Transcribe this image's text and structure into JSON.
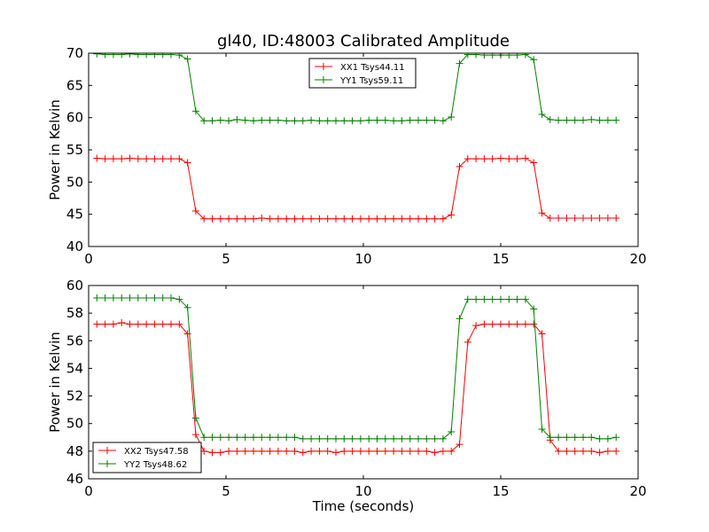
{
  "chart_data": [
    {
      "type": "line",
      "title": "gl40, ID:48003 Calibrated Amplitude",
      "xlabel": "",
      "ylabel": "Power in Kelvin",
      "xlim": [
        0,
        20
      ],
      "ylim": [
        40,
        70
      ],
      "xticks": [
        0,
        5,
        10,
        15,
        20
      ],
      "yticks": [
        40,
        45,
        50,
        55,
        60,
        65,
        70
      ],
      "legend_position": "upper-center",
      "grid": false,
      "x": [
        0.3,
        0.6,
        0.9,
        1.2,
        1.5,
        1.8,
        2.1,
        2.4,
        2.7,
        3.0,
        3.3,
        3.6,
        3.9,
        4.2,
        4.5,
        4.8,
        5.1,
        5.4,
        5.7,
        6.0,
        6.3,
        6.6,
        6.9,
        7.2,
        7.5,
        7.8,
        8.1,
        8.4,
        8.7,
        9.0,
        9.3,
        9.6,
        9.9,
        10.2,
        10.5,
        10.8,
        11.1,
        11.4,
        11.7,
        12.0,
        12.3,
        12.6,
        12.9,
        13.2,
        13.5,
        13.8,
        14.1,
        14.4,
        14.7,
        15.0,
        15.3,
        15.6,
        15.9,
        16.2,
        16.5,
        16.8,
        17.1,
        17.4,
        17.7,
        18.0,
        18.3,
        18.6,
        18.9,
        19.2
      ],
      "series": [
        {
          "name": "XX1 Tsys44.11",
          "color": "#ff0000",
          "values": [
            53.7,
            53.6,
            53.6,
            53.6,
            53.7,
            53.6,
            53.6,
            53.6,
            53.6,
            53.6,
            53.6,
            53.0,
            45.5,
            44.3,
            44.3,
            44.3,
            44.3,
            44.3,
            44.3,
            44.3,
            44.4,
            44.3,
            44.3,
            44.3,
            44.3,
            44.3,
            44.3,
            44.3,
            44.3,
            44.3,
            44.3,
            44.3,
            44.3,
            44.3,
            44.3,
            44.3,
            44.3,
            44.3,
            44.3,
            44.3,
            44.3,
            44.3,
            44.3,
            44.9,
            52.4,
            53.6,
            53.6,
            53.6,
            53.6,
            53.7,
            53.6,
            53.6,
            53.7,
            53.0,
            45.2,
            44.4,
            44.4,
            44.4,
            44.4,
            44.4,
            44.4,
            44.4,
            44.4,
            44.4
          ]
        },
        {
          "name": "YY1 Tsys59.11",
          "color": "#008000",
          "values": [
            69.9,
            69.8,
            69.8,
            69.8,
            69.9,
            69.8,
            69.8,
            69.8,
            69.8,
            69.8,
            69.7,
            69.1,
            61.0,
            59.5,
            59.5,
            59.6,
            59.5,
            59.7,
            59.6,
            59.5,
            59.6,
            59.6,
            59.6,
            59.5,
            59.5,
            59.5,
            59.6,
            59.5,
            59.5,
            59.5,
            59.5,
            59.5,
            59.5,
            59.6,
            59.6,
            59.6,
            59.5,
            59.5,
            59.6,
            59.6,
            59.6,
            59.6,
            59.5,
            60.1,
            68.4,
            69.8,
            69.8,
            69.7,
            69.7,
            69.7,
            69.7,
            69.7,
            69.8,
            69.0,
            60.5,
            59.7,
            59.6,
            59.6,
            59.6,
            59.6,
            59.7,
            59.6,
            59.6,
            59.6
          ]
        }
      ]
    },
    {
      "type": "line",
      "title": "",
      "xlabel": "Time (seconds)",
      "ylabel": "Power in Kelvin",
      "xlim": [
        0,
        20
      ],
      "ylim": [
        46,
        60
      ],
      "xticks": [
        0,
        5,
        10,
        15,
        20
      ],
      "yticks": [
        46,
        48,
        50,
        52,
        54,
        56,
        58,
        60
      ],
      "legend_position": "lower-left",
      "grid": false,
      "x": [
        0.3,
        0.6,
        0.9,
        1.2,
        1.5,
        1.8,
        2.1,
        2.4,
        2.7,
        3.0,
        3.3,
        3.6,
        3.9,
        4.2,
        4.5,
        4.8,
        5.1,
        5.4,
        5.7,
        6.0,
        6.3,
        6.6,
        6.9,
        7.2,
        7.5,
        7.8,
        8.1,
        8.4,
        8.7,
        9.0,
        9.3,
        9.6,
        9.9,
        10.2,
        10.5,
        10.8,
        11.1,
        11.4,
        11.7,
        12.0,
        12.3,
        12.6,
        12.9,
        13.2,
        13.5,
        13.8,
        14.1,
        14.4,
        14.7,
        15.0,
        15.3,
        15.6,
        15.9,
        16.2,
        16.5,
        16.8,
        17.1,
        17.4,
        17.7,
        18.0,
        18.3,
        18.6,
        18.9,
        19.2
      ],
      "series": [
        {
          "name": "XX2 Tsys47.58",
          "color": "#ff0000",
          "values": [
            57.2,
            57.2,
            57.2,
            57.3,
            57.2,
            57.2,
            57.2,
            57.2,
            57.2,
            57.2,
            57.2,
            56.5,
            49.2,
            48.0,
            47.9,
            47.9,
            48.0,
            48.0,
            48.0,
            48.0,
            48.0,
            48.0,
            48.0,
            48.0,
            48.0,
            47.9,
            48.0,
            48.0,
            48.0,
            47.9,
            48.0,
            48.0,
            48.0,
            48.0,
            48.0,
            48.0,
            48.0,
            48.0,
            48.0,
            48.0,
            48.0,
            47.9,
            48.0,
            48.0,
            48.5,
            55.9,
            57.1,
            57.2,
            57.2,
            57.2,
            57.2,
            57.2,
            57.2,
            57.2,
            56.5,
            48.8,
            48.0,
            48.0,
            48.0,
            48.0,
            48.0,
            47.9,
            48.0,
            48.0
          ]
        },
        {
          "name": "YY2 Tsys48.62",
          "color": "#008000",
          "values": [
            59.1,
            59.1,
            59.1,
            59.1,
            59.1,
            59.1,
            59.1,
            59.1,
            59.1,
            59.1,
            59.0,
            58.4,
            50.4,
            49.0,
            49.0,
            49.0,
            49.0,
            49.0,
            49.0,
            49.0,
            49.0,
            49.0,
            49.0,
            49.0,
            49.0,
            48.9,
            48.9,
            48.9,
            48.9,
            48.9,
            48.9,
            48.9,
            48.9,
            48.9,
            48.9,
            48.9,
            48.9,
            48.9,
            48.9,
            48.9,
            48.9,
            48.9,
            48.9,
            49.4,
            57.6,
            59.0,
            59.0,
            59.0,
            59.0,
            59.0,
            59.0,
            59.0,
            59.0,
            58.3,
            49.6,
            49.0,
            49.0,
            49.0,
            49.0,
            49.0,
            49.0,
            48.9,
            48.9,
            49.0
          ]
        }
      ]
    }
  ]
}
